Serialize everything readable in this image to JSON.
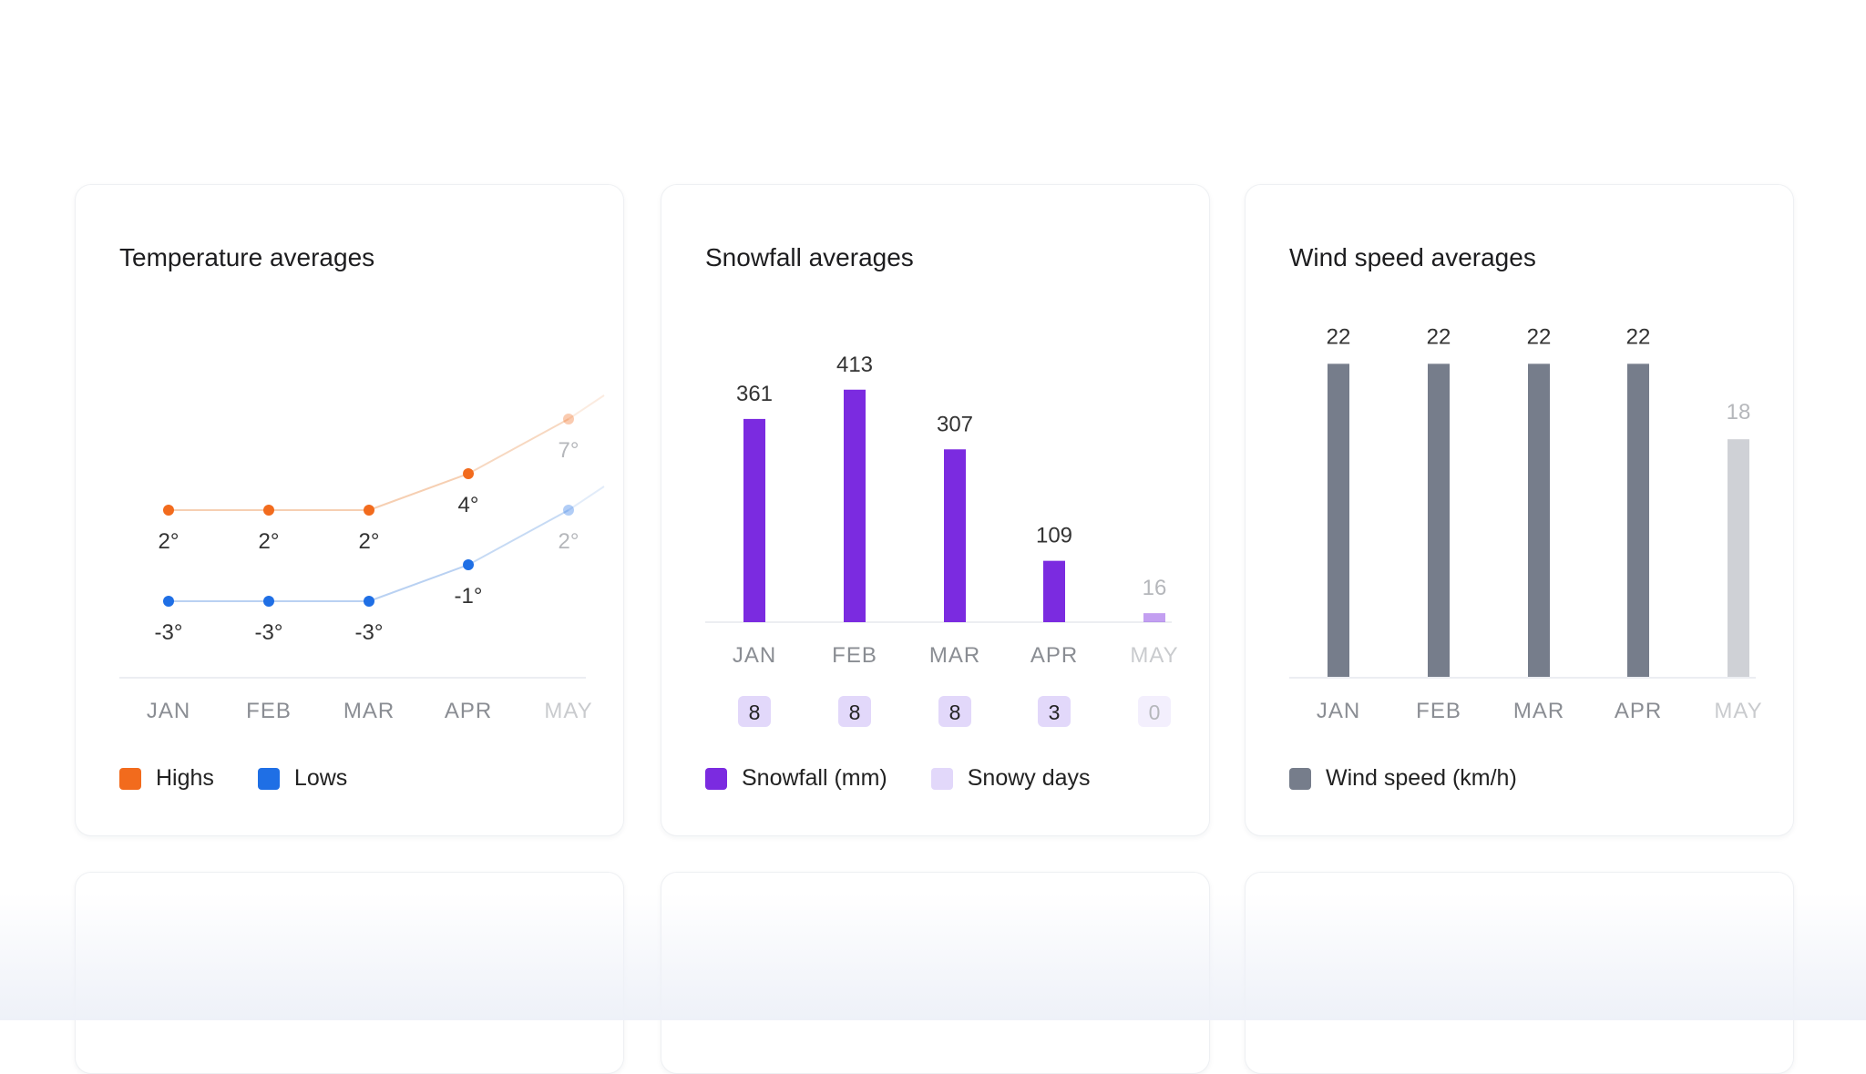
{
  "chart_data": [
    {
      "type": "line",
      "title": "Temperature averages",
      "categories": [
        "JAN",
        "FEB",
        "MAR",
        "APR",
        "MAY"
      ],
      "series": [
        {
          "name": "Highs",
          "values": [
            2,
            2,
            2,
            4,
            7
          ],
          "labels": [
            "2°",
            "2°",
            "2°",
            "4°",
            "7°"
          ],
          "color": "#f26b1d",
          "line_color": "#f6cfb2"
        },
        {
          "name": "Lows",
          "values": [
            -3,
            -3,
            -3,
            -1,
            2
          ],
          "labels": [
            "-3°",
            "-3°",
            "-3°",
            "-1°",
            "2°"
          ],
          "color": "#1f6fe5",
          "line_color": "#b9d1f2"
        }
      ],
      "legend": "bottom-left"
    },
    {
      "type": "bar",
      "title": "Snowfall averages",
      "categories": [
        "JAN",
        "FEB",
        "MAR",
        "APR",
        "MAY"
      ],
      "series": [
        {
          "name": "Snowfall (mm)",
          "values": [
            361,
            413,
            307,
            109,
            16
          ],
          "color": "#7b2be0"
        },
        {
          "name": "Snowy days",
          "values": [
            8,
            8,
            8,
            3,
            0
          ],
          "color": "#e2d8fa"
        }
      ],
      "legend": "bottom-left"
    },
    {
      "type": "bar",
      "title": "Wind speed averages",
      "categories": [
        "JAN",
        "FEB",
        "MAR",
        "APR",
        "MAY"
      ],
      "series": [
        {
          "name": "Wind speed (km/h)",
          "values": [
            22,
            22,
            22,
            22,
            18
          ],
          "color": "#767d8b"
        }
      ],
      "legend": "bottom-left"
    }
  ]
}
